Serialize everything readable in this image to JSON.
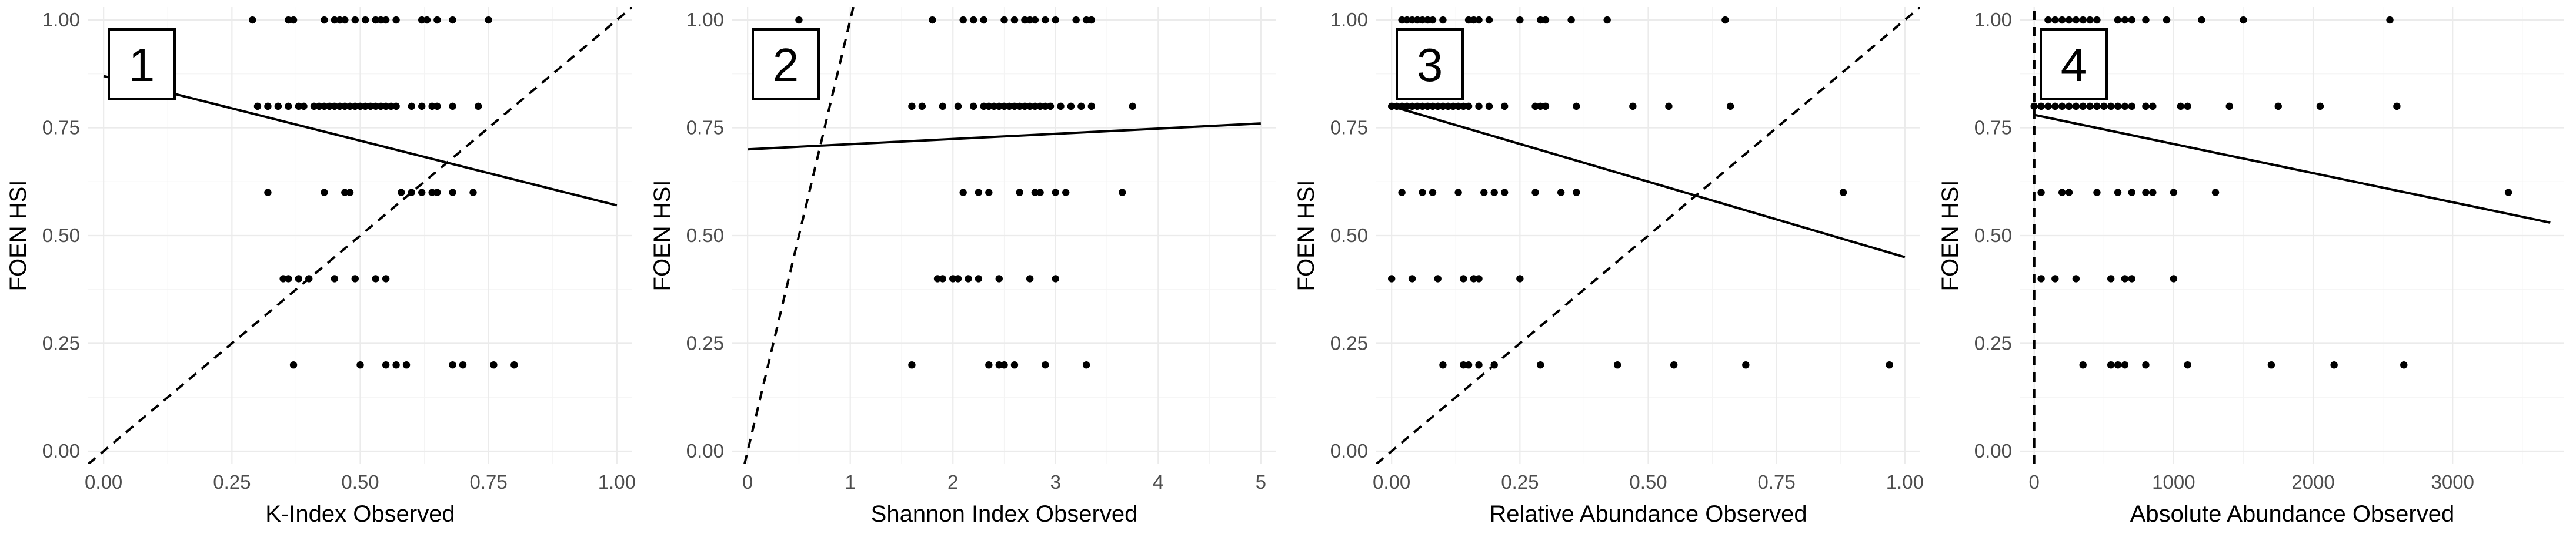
{
  "chart_data": [
    {
      "type": "scatter",
      "panel_label": "1",
      "xlabel": "K-Index Observed",
      "ylabel": "FOEN HSI",
      "xlim": [
        -0.03,
        1.03
      ],
      "ylim": [
        -0.03,
        1.03
      ],
      "x_ticks": [
        0,
        0.25,
        0.5,
        0.75,
        1
      ],
      "x_tick_labels": [
        "0.00",
        "0.25",
        "0.50",
        "0.75",
        "1.00"
      ],
      "y_ticks": [
        0,
        0.25,
        0.5,
        0.75,
        1
      ],
      "y_tick_labels": [
        "0.00",
        "0.25",
        "0.50",
        "0.75",
        "1.00"
      ],
      "grid": true,
      "fit_line": [
        [
          0,
          0.87
        ],
        [
          1,
          0.57
        ]
      ],
      "identity_line": true,
      "points": [
        [
          0.29,
          1
        ],
        [
          0.36,
          1
        ],
        [
          0.37,
          1
        ],
        [
          0.43,
          1
        ],
        [
          0.45,
          1
        ],
        [
          0.46,
          1
        ],
        [
          0.47,
          1
        ],
        [
          0.49,
          1
        ],
        [
          0.51,
          1
        ],
        [
          0.53,
          1
        ],
        [
          0.54,
          1
        ],
        [
          0.55,
          1
        ],
        [
          0.57,
          1
        ],
        [
          0.62,
          1
        ],
        [
          0.63,
          1
        ],
        [
          0.65,
          1
        ],
        [
          0.68,
          1
        ],
        [
          0.75,
          1
        ],
        [
          0.3,
          0.8
        ],
        [
          0.32,
          0.8
        ],
        [
          0.34,
          0.8
        ],
        [
          0.36,
          0.8
        ],
        [
          0.38,
          0.8
        ],
        [
          0.39,
          0.8
        ],
        [
          0.41,
          0.8
        ],
        [
          0.42,
          0.8
        ],
        [
          0.43,
          0.8
        ],
        [
          0.44,
          0.8
        ],
        [
          0.45,
          0.8
        ],
        [
          0.46,
          0.8
        ],
        [
          0.47,
          0.8
        ],
        [
          0.48,
          0.8
        ],
        [
          0.49,
          0.8
        ],
        [
          0.5,
          0.8
        ],
        [
          0.51,
          0.8
        ],
        [
          0.52,
          0.8
        ],
        [
          0.53,
          0.8
        ],
        [
          0.54,
          0.8
        ],
        [
          0.55,
          0.8
        ],
        [
          0.56,
          0.8
        ],
        [
          0.57,
          0.8
        ],
        [
          0.6,
          0.8
        ],
        [
          0.62,
          0.8
        ],
        [
          0.64,
          0.8
        ],
        [
          0.65,
          0.8
        ],
        [
          0.68,
          0.8
        ],
        [
          0.73,
          0.8
        ],
        [
          0.32,
          0.6
        ],
        [
          0.43,
          0.6
        ],
        [
          0.47,
          0.6
        ],
        [
          0.48,
          0.6
        ],
        [
          0.58,
          0.6
        ],
        [
          0.6,
          0.6
        ],
        [
          0.62,
          0.6
        ],
        [
          0.64,
          0.6
        ],
        [
          0.65,
          0.6
        ],
        [
          0.68,
          0.6
        ],
        [
          0.72,
          0.6
        ],
        [
          0.35,
          0.4
        ],
        [
          0.36,
          0.4
        ],
        [
          0.38,
          0.4
        ],
        [
          0.4,
          0.4
        ],
        [
          0.45,
          0.4
        ],
        [
          0.49,
          0.4
        ],
        [
          0.53,
          0.4
        ],
        [
          0.55,
          0.4
        ],
        [
          0.37,
          0.2
        ],
        [
          0.5,
          0.2
        ],
        [
          0.55,
          0.2
        ],
        [
          0.57,
          0.2
        ],
        [
          0.59,
          0.2
        ],
        [
          0.68,
          0.2
        ],
        [
          0.7,
          0.2
        ],
        [
          0.76,
          0.2
        ],
        [
          0.8,
          0.2
        ]
      ]
    },
    {
      "type": "scatter",
      "panel_label": "2",
      "xlabel": "Shannon Index Observed",
      "ylabel": "FOEN HSI",
      "xlim": [
        -0.15,
        5.15
      ],
      "ylim": [
        -0.03,
        1.03
      ],
      "x_ticks": [
        0,
        1,
        2,
        3,
        4,
        5
      ],
      "x_tick_labels": [
        "0",
        "1",
        "2",
        "3",
        "4",
        "5"
      ],
      "y_ticks": [
        0,
        0.25,
        0.5,
        0.75,
        1
      ],
      "y_tick_labels": [
        "0.00",
        "0.25",
        "0.50",
        "0.75",
        "1.00"
      ],
      "grid": true,
      "fit_line": [
        [
          0,
          0.7
        ],
        [
          5,
          0.76
        ]
      ],
      "identity_line": true,
      "points": [
        [
          0.5,
          1
        ],
        [
          1.8,
          1
        ],
        [
          2.1,
          1
        ],
        [
          2.2,
          1
        ],
        [
          2.3,
          1
        ],
        [
          2.5,
          1
        ],
        [
          2.6,
          1
        ],
        [
          2.7,
          1
        ],
        [
          2.75,
          1
        ],
        [
          2.8,
          1
        ],
        [
          2.9,
          1
        ],
        [
          3,
          1
        ],
        [
          3.2,
          1
        ],
        [
          3.3,
          1
        ],
        [
          3.35,
          1
        ],
        [
          1.6,
          0.8
        ],
        [
          1.7,
          0.8
        ],
        [
          1.9,
          0.8
        ],
        [
          2.05,
          0.8
        ],
        [
          2.2,
          0.8
        ],
        [
          2.3,
          0.8
        ],
        [
          2.35,
          0.8
        ],
        [
          2.4,
          0.8
        ],
        [
          2.45,
          0.8
        ],
        [
          2.5,
          0.8
        ],
        [
          2.55,
          0.8
        ],
        [
          2.6,
          0.8
        ],
        [
          2.65,
          0.8
        ],
        [
          2.7,
          0.8
        ],
        [
          2.75,
          0.8
        ],
        [
          2.8,
          0.8
        ],
        [
          2.85,
          0.8
        ],
        [
          2.9,
          0.8
        ],
        [
          2.95,
          0.8
        ],
        [
          3.05,
          0.8
        ],
        [
          3.15,
          0.8
        ],
        [
          3.25,
          0.8
        ],
        [
          3.35,
          0.8
        ],
        [
          3.75,
          0.8
        ],
        [
          2.1,
          0.6
        ],
        [
          2.25,
          0.6
        ],
        [
          2.35,
          0.6
        ],
        [
          2.65,
          0.6
        ],
        [
          2.8,
          0.6
        ],
        [
          2.85,
          0.6
        ],
        [
          3.0,
          0.6
        ],
        [
          3.1,
          0.6
        ],
        [
          3.65,
          0.6
        ],
        [
          1.85,
          0.4
        ],
        [
          1.9,
          0.4
        ],
        [
          2.0,
          0.4
        ],
        [
          2.05,
          0.4
        ],
        [
          2.15,
          0.4
        ],
        [
          2.25,
          0.4
        ],
        [
          2.45,
          0.4
        ],
        [
          2.75,
          0.4
        ],
        [
          3.0,
          0.4
        ],
        [
          1.6,
          0.2
        ],
        [
          2.35,
          0.2
        ],
        [
          2.45,
          0.2
        ],
        [
          2.5,
          0.2
        ],
        [
          2.6,
          0.2
        ],
        [
          2.9,
          0.2
        ],
        [
          3.3,
          0.2
        ]
      ]
    },
    {
      "type": "scatter",
      "panel_label": "3",
      "xlabel": "Relative Abundance Observed",
      "ylabel": "FOEN HSI",
      "xlim": [
        -0.03,
        1.03
      ],
      "ylim": [
        -0.03,
        1.03
      ],
      "x_ticks": [
        0,
        0.25,
        0.5,
        0.75,
        1
      ],
      "x_tick_labels": [
        "0.00",
        "0.25",
        "0.50",
        "0.75",
        "1.00"
      ],
      "y_ticks": [
        0,
        0.25,
        0.5,
        0.75,
        1
      ],
      "y_tick_labels": [
        "0.00",
        "0.25",
        "0.50",
        "0.75",
        "1.00"
      ],
      "grid": true,
      "fit_line": [
        [
          0,
          0.8
        ],
        [
          1,
          0.45
        ]
      ],
      "identity_line": true,
      "points": [
        [
          0.02,
          1
        ],
        [
          0.03,
          1
        ],
        [
          0.04,
          1
        ],
        [
          0.05,
          1
        ],
        [
          0.06,
          1
        ],
        [
          0.07,
          1
        ],
        [
          0.08,
          1
        ],
        [
          0.1,
          1
        ],
        [
          0.15,
          1
        ],
        [
          0.16,
          1
        ],
        [
          0.17,
          1
        ],
        [
          0.19,
          1
        ],
        [
          0.25,
          1
        ],
        [
          0.29,
          1
        ],
        [
          0.3,
          1
        ],
        [
          0.35,
          1
        ],
        [
          0.42,
          1
        ],
        [
          0.65,
          1
        ],
        [
          0,
          0.8
        ],
        [
          0.01,
          0.8
        ],
        [
          0.02,
          0.8
        ],
        [
          0.03,
          0.8
        ],
        [
          0.04,
          0.8
        ],
        [
          0.05,
          0.8
        ],
        [
          0.06,
          0.8
        ],
        [
          0.07,
          0.8
        ],
        [
          0.08,
          0.8
        ],
        [
          0.09,
          0.8
        ],
        [
          0.1,
          0.8
        ],
        [
          0.11,
          0.8
        ],
        [
          0.12,
          0.8
        ],
        [
          0.13,
          0.8
        ],
        [
          0.14,
          0.8
        ],
        [
          0.15,
          0.8
        ],
        [
          0.17,
          0.8
        ],
        [
          0.19,
          0.8
        ],
        [
          0.22,
          0.8
        ],
        [
          0.28,
          0.8
        ],
        [
          0.29,
          0.8
        ],
        [
          0.3,
          0.8
        ],
        [
          0.36,
          0.8
        ],
        [
          0.47,
          0.8
        ],
        [
          0.54,
          0.8
        ],
        [
          0.66,
          0.8
        ],
        [
          0.02,
          0.6
        ],
        [
          0.06,
          0.6
        ],
        [
          0.08,
          0.6
        ],
        [
          0.13,
          0.6
        ],
        [
          0.18,
          0.6
        ],
        [
          0.2,
          0.6
        ],
        [
          0.22,
          0.6
        ],
        [
          0.28,
          0.6
        ],
        [
          0.33,
          0.6
        ],
        [
          0.36,
          0.6
        ],
        [
          0.88,
          0.6
        ],
        [
          0,
          0.4
        ],
        [
          0.04,
          0.4
        ],
        [
          0.09,
          0.4
        ],
        [
          0.14,
          0.4
        ],
        [
          0.16,
          0.4
        ],
        [
          0.17,
          0.4
        ],
        [
          0.25,
          0.4
        ],
        [
          0.1,
          0.2
        ],
        [
          0.14,
          0.2
        ],
        [
          0.15,
          0.2
        ],
        [
          0.17,
          0.2
        ],
        [
          0.2,
          0.2
        ],
        [
          0.29,
          0.2
        ],
        [
          0.44,
          0.2
        ],
        [
          0.55,
          0.2
        ],
        [
          0.69,
          0.2
        ],
        [
          0.97,
          0.2
        ]
      ]
    },
    {
      "type": "scatter",
      "panel_label": "4",
      "xlabel": "Absolute Abundance Observed",
      "ylabel": "FOEN HSI",
      "xlim": [
        -100,
        3800
      ],
      "ylim": [
        -0.03,
        1.03
      ],
      "x_ticks": [
        0,
        1000,
        2000,
        3000
      ],
      "x_tick_labels": [
        "0",
        "1000",
        "2000",
        "3000"
      ],
      "y_ticks": [
        0,
        0.25,
        0.5,
        0.75,
        1
      ],
      "y_tick_labels": [
        "0.00",
        "0.25",
        "0.50",
        "0.75",
        "1.00"
      ],
      "grid": true,
      "fit_line": [
        [
          0,
          0.78
        ],
        [
          3700,
          0.53
        ]
      ],
      "identity_line": true,
      "points": [
        [
          100,
          1
        ],
        [
          150,
          1
        ],
        [
          200,
          1
        ],
        [
          250,
          1
        ],
        [
          300,
          1
        ],
        [
          350,
          1
        ],
        [
          400,
          1
        ],
        [
          450,
          1
        ],
        [
          600,
          1
        ],
        [
          650,
          1
        ],
        [
          700,
          1
        ],
        [
          800,
          1
        ],
        [
          950,
          1
        ],
        [
          1200,
          1
        ],
        [
          1500,
          1
        ],
        [
          2550,
          1
        ],
        [
          0,
          0.8
        ],
        [
          50,
          0.8
        ],
        [
          100,
          0.8
        ],
        [
          150,
          0.8
        ],
        [
          200,
          0.8
        ],
        [
          250,
          0.8
        ],
        [
          300,
          0.8
        ],
        [
          350,
          0.8
        ],
        [
          400,
          0.8
        ],
        [
          450,
          0.8
        ],
        [
          500,
          0.8
        ],
        [
          550,
          0.8
        ],
        [
          600,
          0.8
        ],
        [
          650,
          0.8
        ],
        [
          700,
          0.8
        ],
        [
          800,
          0.8
        ],
        [
          850,
          0.8
        ],
        [
          1050,
          0.8
        ],
        [
          1100,
          0.8
        ],
        [
          1400,
          0.8
        ],
        [
          1750,
          0.8
        ],
        [
          2050,
          0.8
        ],
        [
          2600,
          0.8
        ],
        [
          50,
          0.6
        ],
        [
          200,
          0.6
        ],
        [
          250,
          0.6
        ],
        [
          450,
          0.6
        ],
        [
          600,
          0.6
        ],
        [
          700,
          0.6
        ],
        [
          800,
          0.6
        ],
        [
          850,
          0.6
        ],
        [
          1000,
          0.6
        ],
        [
          1300,
          0.6
        ],
        [
          3400,
          0.6
        ],
        [
          50,
          0.4
        ],
        [
          150,
          0.4
        ],
        [
          300,
          0.4
        ],
        [
          550,
          0.4
        ],
        [
          650,
          0.4
        ],
        [
          700,
          0.4
        ],
        [
          1000,
          0.4
        ],
        [
          350,
          0.2
        ],
        [
          550,
          0.2
        ],
        [
          600,
          0.2
        ],
        [
          650,
          0.2
        ],
        [
          800,
          0.2
        ],
        [
          1100,
          0.2
        ],
        [
          1700,
          0.2
        ],
        [
          2150,
          0.2
        ],
        [
          2650,
          0.2
        ]
      ]
    }
  ]
}
